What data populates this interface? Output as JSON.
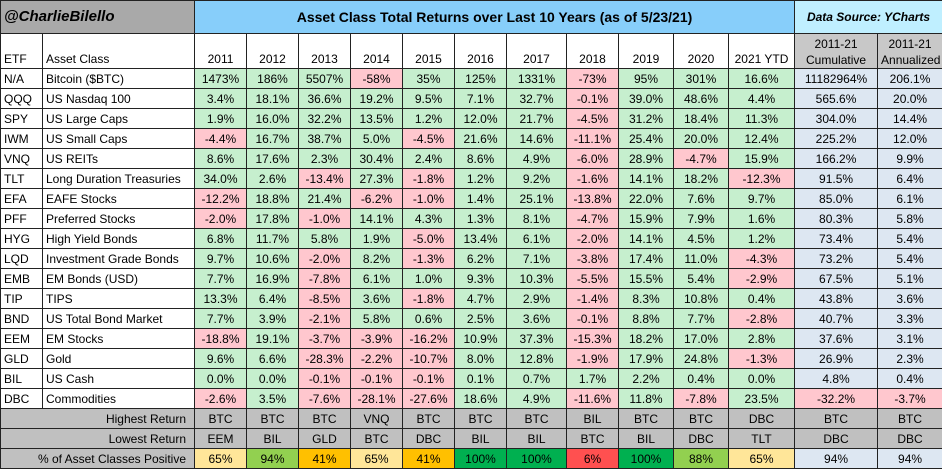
{
  "brand": "@CharlieBilello",
  "title": "Asset Class Total Returns over Last 10 Years (as of 5/23/21)",
  "source": "Data Source: YCharts",
  "col_etf": "ETF",
  "col_asset": "Asset Class",
  "years": [
    "2011",
    "2012",
    "2013",
    "2014",
    "2015",
    "2016",
    "2017",
    "2018",
    "2019",
    "2020",
    "2021 YTD"
  ],
  "cum_label": [
    "2011-21",
    "Cumulative"
  ],
  "ann_label": [
    "2011-21",
    "Annualized"
  ],
  "rows": [
    {
      "etf": "N/A",
      "name": "Bitcoin ($BTC)",
      "v": [
        "1473%",
        "186%",
        "5507%",
        "-58%",
        "35%",
        "125%",
        "1331%",
        "-73%",
        "95%",
        "301%",
        "16.6%"
      ],
      "cum": "11182964%",
      "ann": "206.1%"
    },
    {
      "etf": "QQQ",
      "name": "US Nasdaq 100",
      "v": [
        "3.4%",
        "18.1%",
        "36.6%",
        "19.2%",
        "9.5%",
        "7.1%",
        "32.7%",
        "-0.1%",
        "39.0%",
        "48.6%",
        "4.4%"
      ],
      "cum": "565.6%",
      "ann": "20.0%"
    },
    {
      "etf": "SPY",
      "name": "US Large Caps",
      "v": [
        "1.9%",
        "16.0%",
        "32.2%",
        "13.5%",
        "1.2%",
        "12.0%",
        "21.7%",
        "-4.5%",
        "31.2%",
        "18.4%",
        "11.3%"
      ],
      "cum": "304.0%",
      "ann": "14.4%"
    },
    {
      "etf": "IWM",
      "name": "US Small Caps",
      "v": [
        "-4.4%",
        "16.7%",
        "38.7%",
        "5.0%",
        "-4.5%",
        "21.6%",
        "14.6%",
        "-11.1%",
        "25.4%",
        "20.0%",
        "12.4%"
      ],
      "cum": "225.2%",
      "ann": "12.0%"
    },
    {
      "etf": "VNQ",
      "name": "US REITs",
      "v": [
        "8.6%",
        "17.6%",
        "2.3%",
        "30.4%",
        "2.4%",
        "8.6%",
        "4.9%",
        "-6.0%",
        "28.9%",
        "-4.7%",
        "15.9%"
      ],
      "cum": "166.2%",
      "ann": "9.9%"
    },
    {
      "etf": "TLT",
      "name": "Long Duration Treasuries",
      "v": [
        "34.0%",
        "2.6%",
        "-13.4%",
        "27.3%",
        "-1.8%",
        "1.2%",
        "9.2%",
        "-1.6%",
        "14.1%",
        "18.2%",
        "-12.3%"
      ],
      "cum": "91.5%",
      "ann": "6.4%"
    },
    {
      "etf": "EFA",
      "name": "EAFE Stocks",
      "v": [
        "-12.2%",
        "18.8%",
        "21.4%",
        "-6.2%",
        "-1.0%",
        "1.4%",
        "25.1%",
        "-13.8%",
        "22.0%",
        "7.6%",
        "9.7%"
      ],
      "cum": "85.0%",
      "ann": "6.1%"
    },
    {
      "etf": "PFF",
      "name": "Preferred Stocks",
      "v": [
        "-2.0%",
        "17.8%",
        "-1.0%",
        "14.1%",
        "4.3%",
        "1.3%",
        "8.1%",
        "-4.7%",
        "15.9%",
        "7.9%",
        "1.6%"
      ],
      "cum": "80.3%",
      "ann": "5.8%"
    },
    {
      "etf": "HYG",
      "name": "High Yield Bonds",
      "v": [
        "6.8%",
        "11.7%",
        "5.8%",
        "1.9%",
        "-5.0%",
        "13.4%",
        "6.1%",
        "-2.0%",
        "14.1%",
        "4.5%",
        "1.2%"
      ],
      "cum": "73.4%",
      "ann": "5.4%"
    },
    {
      "etf": "LQD",
      "name": "Investment Grade Bonds",
      "v": [
        "9.7%",
        "10.6%",
        "-2.0%",
        "8.2%",
        "-1.3%",
        "6.2%",
        "7.1%",
        "-3.8%",
        "17.4%",
        "11.0%",
        "-4.3%"
      ],
      "cum": "73.2%",
      "ann": "5.4%"
    },
    {
      "etf": "EMB",
      "name": "EM Bonds (USD)",
      "v": [
        "7.7%",
        "16.9%",
        "-7.8%",
        "6.1%",
        "1.0%",
        "9.3%",
        "10.3%",
        "-5.5%",
        "15.5%",
        "5.4%",
        "-2.9%"
      ],
      "cum": "67.5%",
      "ann": "5.1%"
    },
    {
      "etf": "TIP",
      "name": "TIPS",
      "v": [
        "13.3%",
        "6.4%",
        "-8.5%",
        "3.6%",
        "-1.8%",
        "4.7%",
        "2.9%",
        "-1.4%",
        "8.3%",
        "10.8%",
        "0.4%"
      ],
      "cum": "43.8%",
      "ann": "3.6%"
    },
    {
      "etf": "BND",
      "name": "US Total Bond Market",
      "v": [
        "7.7%",
        "3.9%",
        "-2.1%",
        "5.8%",
        "0.6%",
        "2.5%",
        "3.6%",
        "-0.1%",
        "8.8%",
        "7.7%",
        "-2.8%"
      ],
      "cum": "40.7%",
      "ann": "3.3%"
    },
    {
      "etf": "EEM",
      "name": "EM Stocks",
      "v": [
        "-18.8%",
        "19.1%",
        "-3.7%",
        "-3.9%",
        "-16.2%",
        "10.9%",
        "37.3%",
        "-15.3%",
        "18.2%",
        "17.0%",
        "2.8%"
      ],
      "cum": "37.6%",
      "ann": "3.1%"
    },
    {
      "etf": "GLD",
      "name": "Gold",
      "v": [
        "9.6%",
        "6.6%",
        "-28.3%",
        "-2.2%",
        "-10.7%",
        "8.0%",
        "12.8%",
        "-1.9%",
        "17.9%",
        "24.8%",
        "-1.3%"
      ],
      "cum": "26.9%",
      "ann": "2.3%"
    },
    {
      "etf": "BIL",
      "name": "US Cash",
      "v": [
        "0.0%",
        "0.0%",
        "-0.1%",
        "-0.1%",
        "-0.1%",
        "0.1%",
        "0.7%",
        "1.7%",
        "2.2%",
        "0.4%",
        "0.0%"
      ],
      "cum": "4.8%",
      "ann": "0.4%"
    },
    {
      "etf": "DBC",
      "name": "Commodities",
      "v": [
        "-2.6%",
        "3.5%",
        "-7.6%",
        "-28.1%",
        "-27.6%",
        "18.6%",
        "4.9%",
        "-11.6%",
        "11.8%",
        "-7.8%",
        "23.5%"
      ],
      "cum": "-32.2%",
      "ann": "-3.7%"
    }
  ],
  "highest": {
    "label": "Highest Return",
    "v": [
      "BTC",
      "BTC",
      "BTC",
      "VNQ",
      "BTC",
      "BTC",
      "BTC",
      "BIL",
      "BTC",
      "BTC",
      "DBC"
    ],
    "cum": "BTC",
    "ann": "BTC"
  },
  "lowest": {
    "label": "Lowest Return",
    "v": [
      "EEM",
      "BIL",
      "GLD",
      "BTC",
      "DBC",
      "BIL",
      "BIL",
      "BTC",
      "BIL",
      "DBC",
      "TLT"
    ],
    "cum": "DBC",
    "ann": "DBC"
  },
  "positive": {
    "label": "% of Asset Classes Positive",
    "v": [
      "65%",
      "94%",
      "41%",
      "65%",
      "41%",
      "100%",
      "100%",
      "6%",
      "100%",
      "88%",
      "65%"
    ],
    "cum": "94%",
    "ann": "94%",
    "colors": [
      "#ffe699",
      "#92d050",
      "#ffc000",
      "#ffe699",
      "#ffc000",
      "#00b050",
      "#00b050",
      "#ff5050",
      "#00b050",
      "#92d050",
      "#ffe699"
    ]
  },
  "colors": {
    "positive": "#c6efce",
    "negative": "#ffc7ce",
    "header": "#87cefa",
    "summary": "#c0c0c0",
    "cum": "#dde7f2"
  }
}
